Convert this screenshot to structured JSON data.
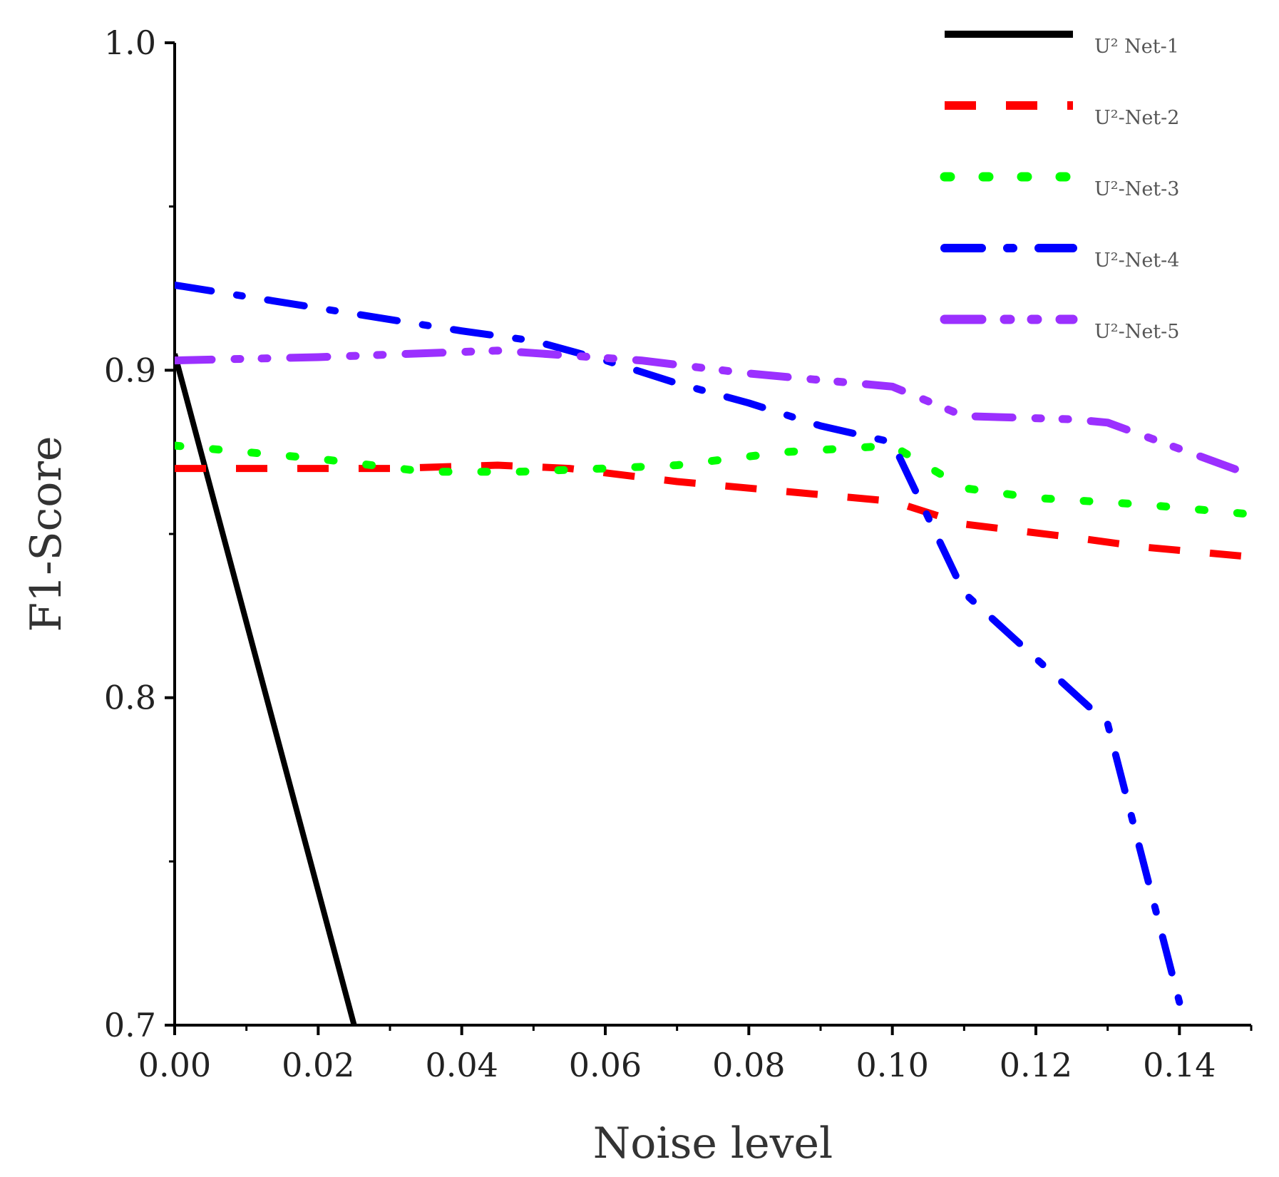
{
  "chart_data": {
    "type": "line",
    "title": "",
    "xlabel": "Noise level",
    "ylabel": "F1-Score",
    "xlim": [
      0.0,
      0.15
    ],
    "ylim": [
      0.7,
      1.0
    ],
    "x_ticks": [
      "0.00",
      "0.02",
      "0.04",
      "0.06",
      "0.08",
      "0.10",
      "0.12",
      "0.14"
    ],
    "y_ticks": [
      "0.7",
      "0.8",
      "0.9",
      "1.0"
    ],
    "grid": false,
    "legend_position": "top-right",
    "series": [
      {
        "name": "U² Net-1",
        "color": "#000000",
        "style": "solid",
        "points": [
          [
            0.0,
            0.905
          ],
          [
            0.025,
            0.7
          ]
        ]
      },
      {
        "name": "U²-Net-2",
        "color": "#ff0000",
        "style": "dash",
        "points": [
          [
            0.0,
            0.87
          ],
          [
            0.02,
            0.87
          ],
          [
            0.03,
            0.87
          ],
          [
            0.045,
            0.871
          ],
          [
            0.055,
            0.87
          ],
          [
            0.07,
            0.866
          ],
          [
            0.085,
            0.863
          ],
          [
            0.1,
            0.86
          ],
          [
            0.11,
            0.853
          ],
          [
            0.125,
            0.849
          ],
          [
            0.135,
            0.846
          ],
          [
            0.15,
            0.843
          ]
        ]
      },
      {
        "name": "U²-Net-3",
        "color": "#00ff00",
        "style": "dot",
        "points": [
          [
            0.0,
            0.877
          ],
          [
            0.02,
            0.873
          ],
          [
            0.035,
            0.869
          ],
          [
            0.048,
            0.869
          ],
          [
            0.06,
            0.87
          ],
          [
            0.07,
            0.871
          ],
          [
            0.085,
            0.875
          ],
          [
            0.1,
            0.877
          ],
          [
            0.11,
            0.864
          ],
          [
            0.12,
            0.861
          ],
          [
            0.135,
            0.859
          ],
          [
            0.15,
            0.856
          ]
        ]
      },
      {
        "name": "U²-Net-4",
        "color": "#0000ff",
        "style": "dashdot",
        "points": [
          [
            0.0,
            0.926
          ],
          [
            0.02,
            0.919
          ],
          [
            0.04,
            0.912
          ],
          [
            0.05,
            0.909
          ],
          [
            0.06,
            0.903
          ],
          [
            0.07,
            0.896
          ],
          [
            0.08,
            0.89
          ],
          [
            0.09,
            0.883
          ],
          [
            0.1,
            0.878
          ],
          [
            0.11,
            0.832
          ],
          [
            0.12,
            0.812
          ],
          [
            0.13,
            0.792
          ],
          [
            0.14,
            0.707
          ]
        ]
      },
      {
        "name": "U²-Net-5",
        "color": "#9b30ff",
        "style": "dashdotdot",
        "points": [
          [
            0.0,
            0.903
          ],
          [
            0.02,
            0.904
          ],
          [
            0.045,
            0.906
          ],
          [
            0.065,
            0.903
          ],
          [
            0.08,
            0.899
          ],
          [
            0.1,
            0.895
          ],
          [
            0.11,
            0.886
          ],
          [
            0.125,
            0.885
          ],
          [
            0.13,
            0.884
          ],
          [
            0.15,
            0.868
          ]
        ]
      }
    ]
  }
}
